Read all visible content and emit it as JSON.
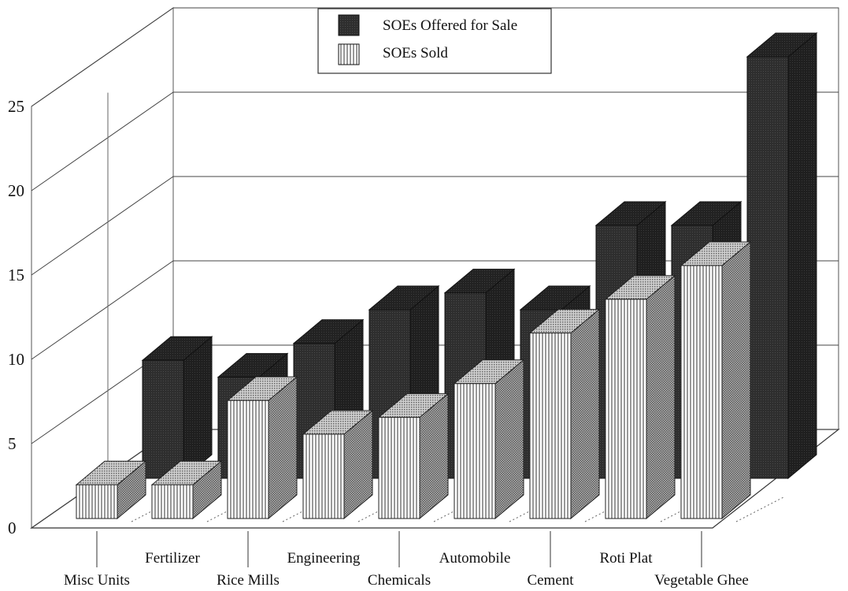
{
  "chart_data": {
    "type": "bar",
    "title": "",
    "xlabel": "",
    "ylabel": "",
    "ylim": [
      0,
      25
    ],
    "yticks": [
      0,
      5,
      10,
      15,
      20,
      25
    ],
    "grid": true,
    "legend_position": "top-center",
    "categories": [
      "Misc Units",
      "Fertilizer",
      "Rice Mills",
      "Engineering",
      "Chemicals",
      "Automobile",
      "Cement",
      "Roti Plat",
      "Vegetable Ghee"
    ],
    "series": [
      {
        "name": "SOEs Offered for Sale",
        "values": [
          7,
          6,
          8,
          10,
          11,
          10,
          15,
          15,
          25
        ],
        "color": "#2b2b2b",
        "pattern": "solid-dark"
      },
      {
        "name": "SOEs Sold",
        "values": [
          2,
          2,
          7,
          5,
          6,
          8,
          11,
          13,
          15
        ],
        "color": "#ffffff",
        "pattern": "vertical-stripes"
      }
    ]
  }
}
